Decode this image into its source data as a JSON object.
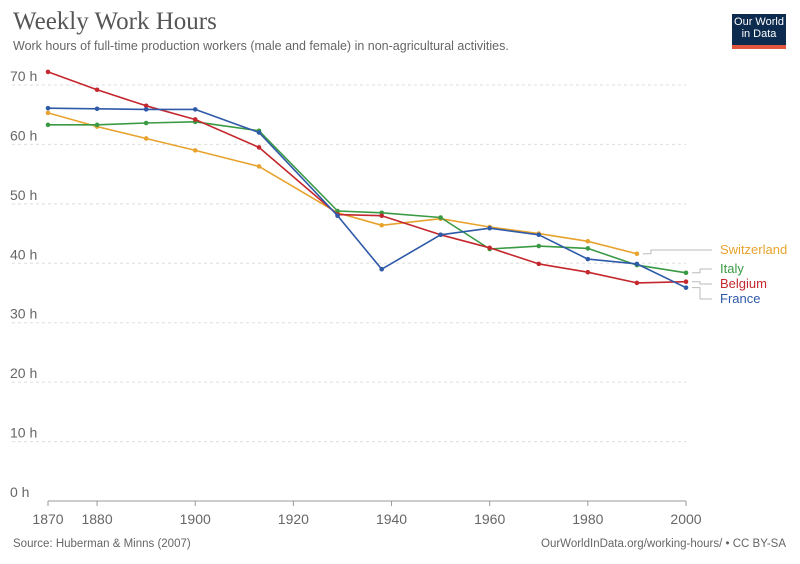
{
  "header": {
    "title": "Weekly Work Hours",
    "subtitle": "Work hours of full-time production workers (male and female) in non-agricultural activities.",
    "logo_line1": "Our World",
    "logo_line2": "in Data"
  },
  "footer": {
    "source": "Source: Huberman & Minns (2007)",
    "credit": "OurWorldInData.org/working-hours/ • CC BY-SA"
  },
  "colors": {
    "logo_bg": "#0d2b4e",
    "logo_accent": "#e2563b",
    "grid": "#dddddd"
  },
  "chart_data": {
    "type": "line",
    "title": "Weekly Work Hours",
    "xlim": [
      1870,
      2000
    ],
    "ylim": [
      0,
      70
    ],
    "x_ticks": [
      1870,
      1880,
      1900,
      1920,
      1940,
      1960,
      1980,
      2000
    ],
    "y_ticks": [
      {
        "value": 0,
        "label": "0 h"
      },
      {
        "value": 10,
        "label": "10 h"
      },
      {
        "value": 20,
        "label": "20 h"
      },
      {
        "value": 30,
        "label": "30 h"
      },
      {
        "value": 40,
        "label": "40 h"
      },
      {
        "value": 50,
        "label": "50 h"
      },
      {
        "value": 60,
        "label": "60 h"
      },
      {
        "value": 70,
        "label": "70 h"
      }
    ],
    "grid": true,
    "legend": "right (labels at line ends)",
    "series": [
      {
        "name": "Switzerland",
        "color": "#e8a32e",
        "points": [
          [
            1870,
            65.3
          ],
          [
            1880,
            63.0
          ],
          [
            1890,
            61.0
          ],
          [
            1900,
            59.0
          ],
          [
            1913,
            56.3
          ],
          [
            1929,
            48.5
          ],
          [
            1938,
            46.4
          ],
          [
            1950,
            47.5
          ],
          [
            1960,
            46.1
          ],
          [
            1970,
            45.0
          ],
          [
            1980,
            43.7
          ],
          [
            1990,
            41.6
          ]
        ]
      },
      {
        "name": "Italy",
        "color": "#3a9a44",
        "points": [
          [
            1870,
            63.3
          ],
          [
            1880,
            63.3
          ],
          [
            1890,
            63.6
          ],
          [
            1900,
            63.8
          ],
          [
            1913,
            62.3
          ],
          [
            1929,
            48.8
          ],
          [
            1938,
            48.5
          ],
          [
            1950,
            47.7
          ],
          [
            1960,
            42.4
          ],
          [
            1970,
            42.9
          ],
          [
            1980,
            42.5
          ],
          [
            1990,
            39.7
          ],
          [
            2000,
            38.4
          ]
        ]
      },
      {
        "name": "Belgium",
        "color": "#c4282e",
        "points": [
          [
            1870,
            72.2
          ],
          [
            1880,
            69.2
          ],
          [
            1890,
            66.5
          ],
          [
            1900,
            64.2
          ],
          [
            1913,
            59.5
          ],
          [
            1929,
            48.2
          ],
          [
            1938,
            48.0
          ],
          [
            1950,
            44.8
          ],
          [
            1960,
            42.6
          ],
          [
            1970,
            39.9
          ],
          [
            1980,
            38.5
          ],
          [
            1990,
            36.7
          ],
          [
            2000,
            36.9
          ]
        ]
      },
      {
        "name": "France",
        "color": "#2e5aa8",
        "points": [
          [
            1870,
            66.1
          ],
          [
            1880,
            66.0
          ],
          [
            1890,
            65.9
          ],
          [
            1900,
            65.9
          ],
          [
            1913,
            62.0
          ],
          [
            1929,
            48.0
          ],
          [
            1938,
            39.0
          ],
          [
            1950,
            44.8
          ],
          [
            1960,
            45.9
          ],
          [
            1970,
            44.8
          ],
          [
            1980,
            40.7
          ],
          [
            1990,
            39.9
          ],
          [
            2000,
            35.9
          ]
        ]
      }
    ]
  }
}
